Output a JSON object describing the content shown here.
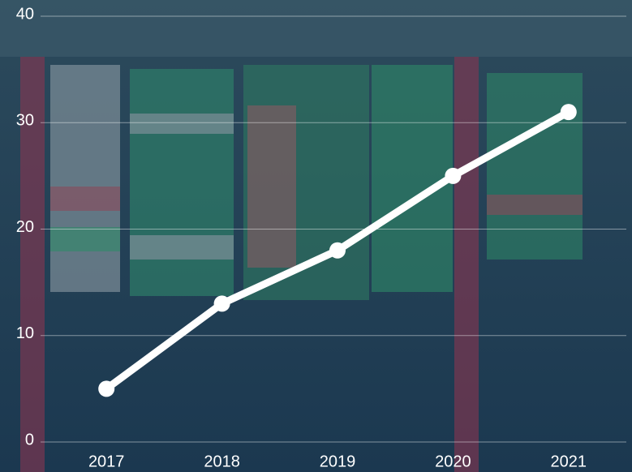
{
  "chart_data": {
    "type": "line",
    "categories": [
      "2017",
      "2018",
      "2019",
      "2020",
      "2021"
    ],
    "values": [
      5,
      13,
      18,
      25,
      31
    ],
    "color": "#ffffff",
    "ylim": [
      0,
      40
    ],
    "yticks": [
      0,
      10,
      20,
      30,
      40
    ],
    "grid": true
  }
}
